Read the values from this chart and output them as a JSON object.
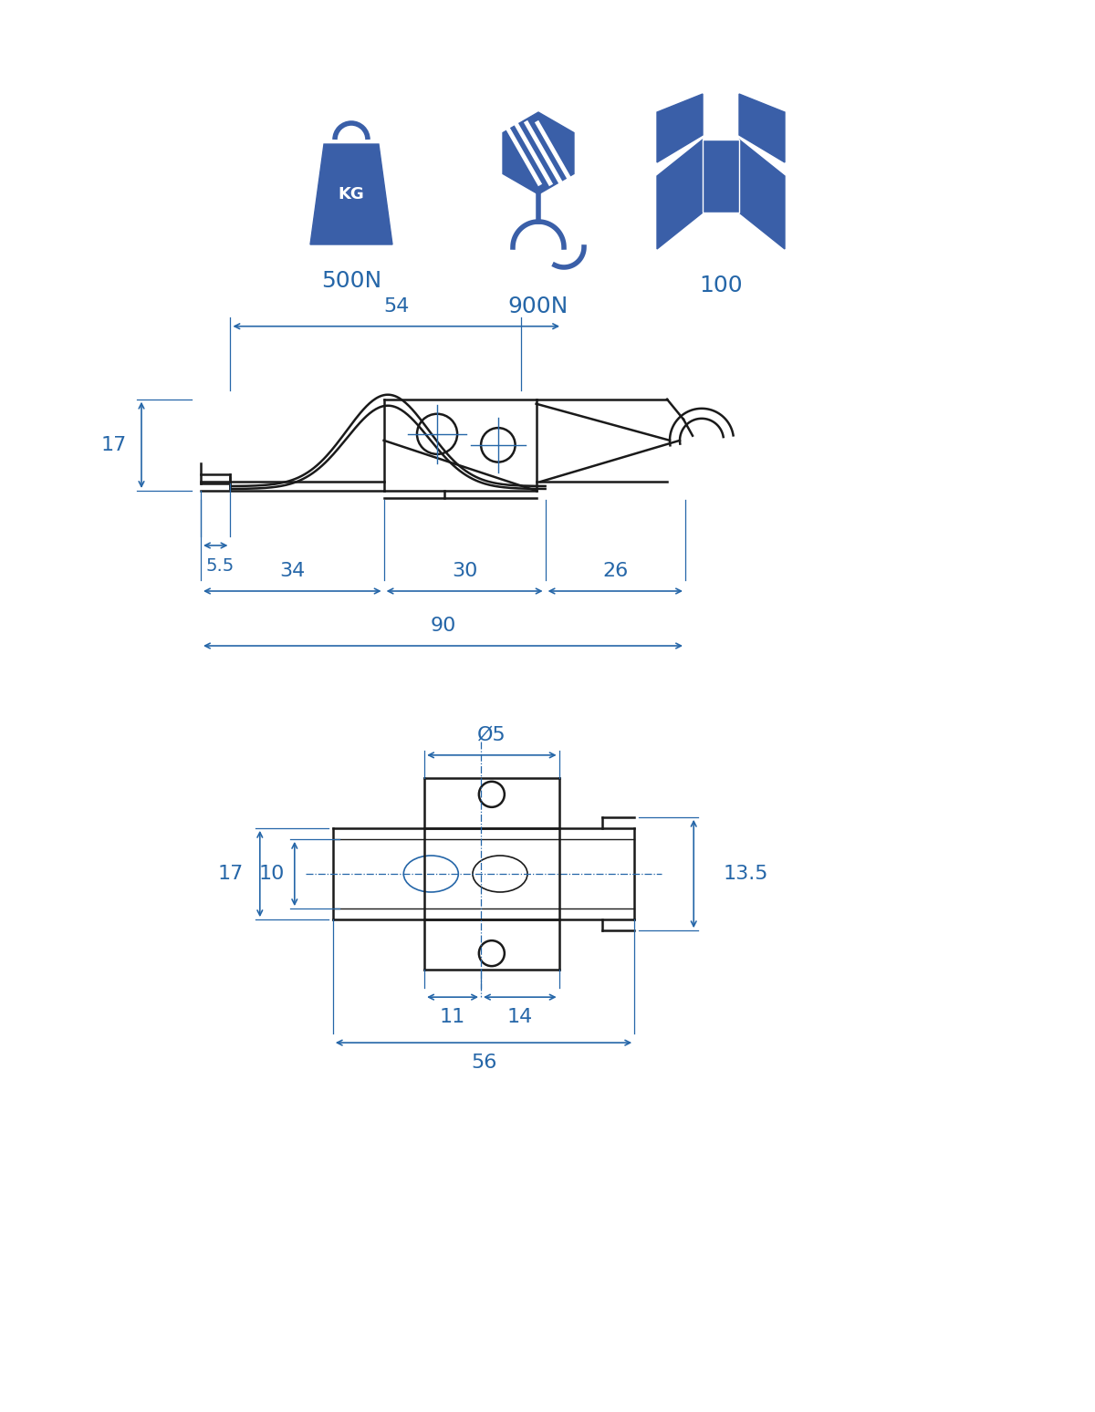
{
  "bg_color": "#ffffff",
  "dim_color": "#2566a8",
  "line_color": "#1a1a1a",
  "icon_color": "#3a5fa8",
  "fig_width": 12.0,
  "fig_height": 15.48,
  "top_view_labels": {
    "54": "54",
    "17": "17",
    "5.5": "5.5",
    "34": "34",
    "30": "30",
    "26": "26",
    "90": "90"
  },
  "bottom_view_labels": {
    "d5": "Ø5",
    "17": "17",
    "10": "10",
    "13.5": "13.5",
    "11": "11",
    "14": "14",
    "56": "56"
  },
  "icon_labels": [
    "500N",
    "900N",
    "100"
  ]
}
